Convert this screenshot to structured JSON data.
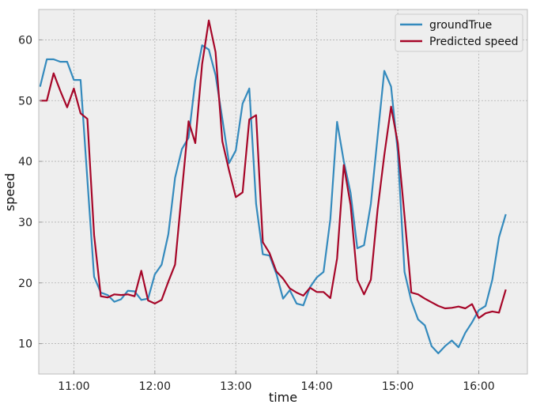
{
  "chart_data": {
    "type": "line",
    "title": "",
    "xlabel": "time",
    "ylabel": "speed",
    "x_unit": "time of day",
    "xlim": [
      "10:34",
      "16:36"
    ],
    "ylim": [
      5,
      65
    ],
    "x_ticks": [
      "11:00",
      "12:00",
      "13:00",
      "14:00",
      "15:00",
      "16:00"
    ],
    "y_ticks": [
      10,
      20,
      30,
      40,
      50,
      60
    ],
    "grid": true,
    "legend_position": "top-right",
    "x": [
      "10:35",
      "10:40",
      "10:45",
      "10:50",
      "10:55",
      "11:00",
      "11:05",
      "11:10",
      "11:15",
      "11:20",
      "11:25",
      "11:30",
      "11:35",
      "11:40",
      "11:45",
      "11:50",
      "11:55",
      "12:00",
      "12:05",
      "12:10",
      "12:15",
      "12:20",
      "12:25",
      "12:30",
      "12:35",
      "12:40",
      "12:45",
      "12:50",
      "12:55",
      "13:00",
      "13:05",
      "13:10",
      "13:15",
      "13:20",
      "13:25",
      "13:30",
      "13:35",
      "13:40",
      "13:45",
      "13:50",
      "13:55",
      "14:00",
      "14:05",
      "14:10",
      "14:15",
      "14:20",
      "14:25",
      "14:30",
      "14:35",
      "14:40",
      "14:45",
      "14:50",
      "14:55",
      "15:00",
      "15:05",
      "15:10",
      "15:15",
      "15:20",
      "15:25",
      "15:30",
      "15:35",
      "15:40",
      "15:45",
      "15:50",
      "15:55",
      "16:00",
      "16:05",
      "16:10",
      "16:15",
      "16:20"
    ],
    "series": [
      {
        "name": "groundTrue",
        "color": "#348abd",
        "values": [
          52.3,
          56.8,
          56.8,
          56.4,
          56.4,
          53.4,
          53.4,
          37.0,
          21.0,
          18.4,
          18.0,
          16.9,
          17.3,
          18.7,
          18.6,
          17.2,
          17.4,
          21.4,
          23.0,
          28.0,
          37.3,
          42.0,
          43.9,
          53.3,
          59.1,
          58.4,
          54.2,
          47.0,
          39.7,
          41.8,
          49.5,
          52.0,
          33.0,
          24.7,
          24.5,
          21.5,
          17.4,
          18.8,
          16.6,
          16.3,
          19.3,
          20.9,
          21.8,
          30.5,
          46.5,
          40.0,
          34.8,
          25.7,
          26.2,
          33.0,
          44.0,
          54.9,
          52.3,
          41.5,
          21.8,
          17.0,
          14.0,
          13.0,
          9.6,
          8.4,
          9.6,
          10.5,
          9.4,
          11.8,
          13.5,
          15.5,
          16.2,
          20.5,
          27.5,
          31.3
        ]
      },
      {
        "name": "Predicted speed",
        "color": "#a60628",
        "values": [
          50.0,
          50.0,
          54.5,
          51.6,
          48.9,
          52.0,
          47.9,
          47.0,
          27.9,
          17.8,
          17.6,
          18.1,
          18.0,
          18.1,
          17.8,
          22.0,
          17.1,
          16.6,
          17.2,
          20.2,
          23.0,
          35.0,
          46.6,
          43.0,
          56.0,
          63.2,
          58.0,
          43.3,
          38.5,
          34.1,
          34.9,
          46.9,
          47.6,
          26.7,
          24.9,
          21.9,
          20.7,
          19.1,
          18.4,
          17.9,
          19.2,
          18.5,
          18.5,
          17.5,
          24.0,
          39.4,
          32.8,
          20.5,
          18.1,
          20.5,
          32.0,
          41.0,
          49.0,
          43.0,
          31.0,
          18.4,
          18.1,
          17.4,
          16.8,
          16.2,
          15.8,
          15.9,
          16.1,
          15.8,
          16.5,
          14.2,
          15.0,
          15.3,
          15.1,
          18.9
        ]
      }
    ]
  }
}
